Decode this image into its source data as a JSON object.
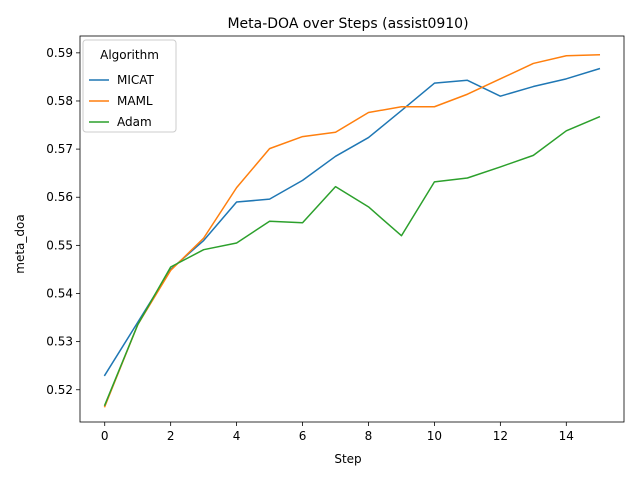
{
  "chart_data": {
    "type": "line",
    "title": "Meta-DOA over Steps (assist0910)",
    "xlabel": "Step",
    "ylabel": "meta_doa",
    "xlim": [
      -0.75,
      15.75
    ],
    "ylim": [
      0.5133,
      0.5935
    ],
    "xticks": [
      0,
      2,
      4,
      6,
      8,
      10,
      12,
      14
    ],
    "yticks": [
      0.52,
      0.53,
      0.54,
      0.55,
      0.56,
      0.57,
      0.58,
      0.59
    ],
    "grid": false,
    "legend": {
      "title": "Algorithm",
      "placement": "upper-left"
    },
    "x": [
      0,
      1,
      2,
      3,
      4,
      5,
      6,
      7,
      8,
      9,
      10,
      11,
      12,
      13,
      14,
      15
    ],
    "series": [
      {
        "name": "MICAT",
        "color": "#1f77b4",
        "values": [
          0.523,
          0.534,
          0.545,
          0.551,
          0.559,
          0.5596,
          0.5635,
          0.5685,
          0.5724,
          0.578,
          0.5837,
          0.5843,
          0.581,
          0.583,
          0.5846,
          0.5867
        ]
      },
      {
        "name": "MAML",
        "color": "#ff7f0e",
        "values": [
          0.5165,
          0.5335,
          0.5448,
          0.5515,
          0.562,
          0.5701,
          0.5726,
          0.5735,
          0.5776,
          0.5788,
          0.5788,
          0.5814,
          0.5846,
          0.5878,
          0.5894,
          0.5896
        ]
      },
      {
        "name": "Adam",
        "color": "#2ca02c",
        "values": [
          0.5168,
          0.5335,
          0.5455,
          0.5491,
          0.5505,
          0.555,
          0.5547,
          0.5622,
          0.558,
          0.552,
          0.5632,
          0.564,
          0.5663,
          0.5687,
          0.5738,
          0.5767
        ]
      }
    ]
  }
}
